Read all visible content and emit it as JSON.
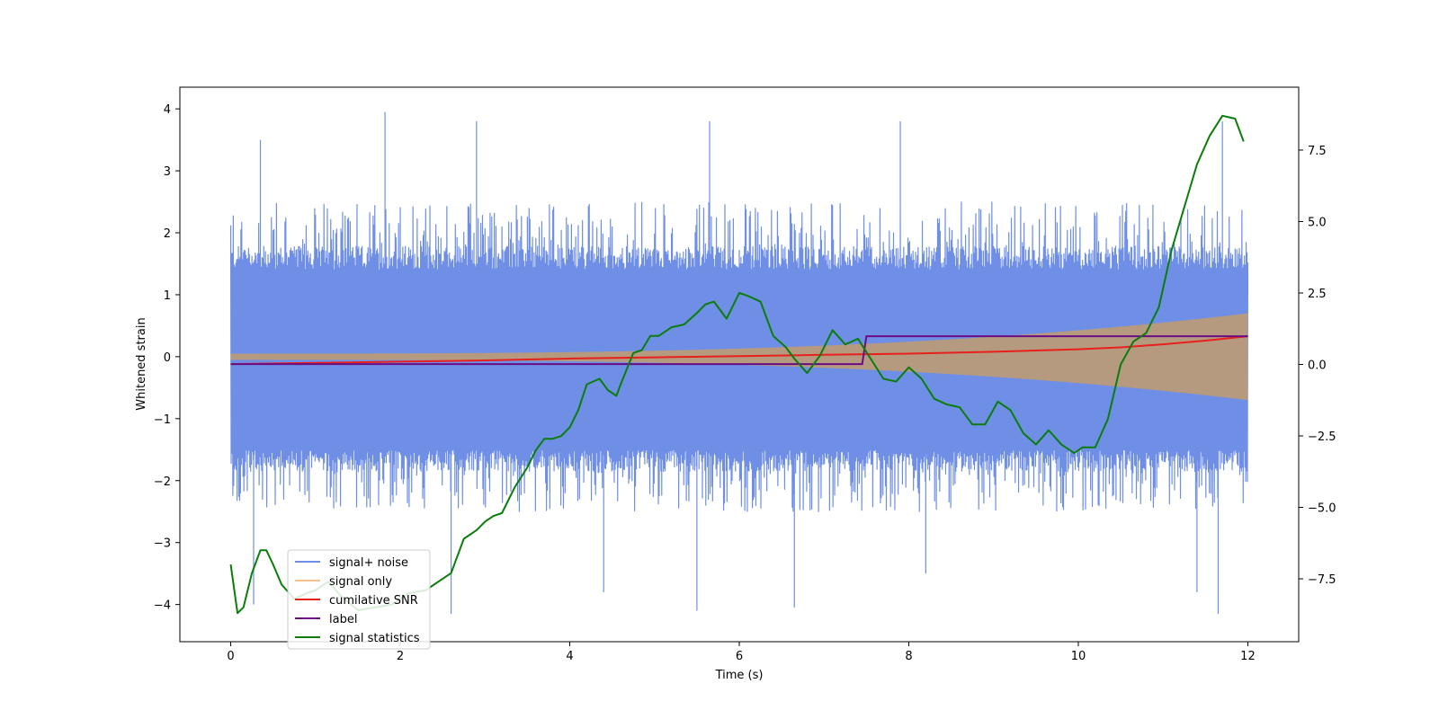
{
  "chart_data": {
    "type": "line",
    "title": "",
    "xlabel": "Time (s)",
    "ylabel": "Whitened strain",
    "y2label": "",
    "xlim": [
      -0.6,
      12.6
    ],
    "ylim": [
      -4.6,
      4.35
    ],
    "y2lim": [
      -9.7,
      9.7
    ],
    "xticks": [
      0,
      2,
      4,
      6,
      8,
      10,
      12
    ],
    "xtick_labels": [
      "0",
      "2",
      "4",
      "6",
      "8",
      "10",
      "12"
    ],
    "yticks": [
      -4,
      -3,
      -2,
      -1,
      0,
      1,
      2,
      3,
      4
    ],
    "ytick_labels": [
      "−4",
      "−3",
      "−2",
      "−1",
      "0",
      "1",
      "2",
      "3",
      "4"
    ],
    "y2ticks": [
      -7.5,
      -5.0,
      -2.5,
      0.0,
      2.5,
      5.0,
      7.5
    ],
    "y2tick_labels": [
      "−7.5",
      "−5.0",
      "−2.5",
      "0.0",
      "2.5",
      "5.0",
      "7.5"
    ],
    "legend_location": "lower-left",
    "series": [
      {
        "name": "signal+ noise",
        "color": "#6f8fe6",
        "axis": "left",
        "kind": "noise-band",
        "x_range": [
          0,
          12
        ],
        "band_low": -1.5,
        "band_high": 1.4,
        "envelope_high": 2.5,
        "envelope_low": -2.5,
        "spikes": [
          [
            0.27,
            -4.0
          ],
          [
            0.35,
            3.5
          ],
          [
            1.82,
            3.95
          ],
          [
            2.9,
            3.8
          ],
          [
            2.6,
            -4.15
          ],
          [
            4.4,
            -3.8
          ],
          [
            5.5,
            -4.1
          ],
          [
            5.65,
            3.8
          ],
          [
            6.65,
            -4.05
          ],
          [
            7.9,
            3.8
          ],
          [
            8.2,
            -3.5
          ],
          [
            11.4,
            -3.8
          ],
          [
            11.65,
            -4.15
          ],
          [
            11.7,
            3.8
          ]
        ]
      },
      {
        "name": "signal only",
        "color": "#f5c08c",
        "axis": "left",
        "kind": "chirp",
        "x_range": [
          0,
          12
        ],
        "amplitude_start": 0.05,
        "amplitude_end": 0.7
      },
      {
        "name": "cumilative SNR",
        "color": "#e8201c",
        "axis": "left",
        "x": [
          0,
          1,
          2,
          3,
          4,
          5,
          6,
          7,
          8,
          9,
          10,
          10.5,
          11,
          11.5,
          12
        ],
        "y": [
          -0.12,
          -0.1,
          -0.08,
          -0.06,
          -0.03,
          -0.01,
          0.01,
          0.03,
          0.05,
          0.08,
          0.12,
          0.15,
          0.2,
          0.26,
          0.33
        ]
      },
      {
        "name": "label",
        "color": "#6a0d83",
        "axis": "left",
        "x": [
          0,
          7.45,
          7.5,
          12
        ],
        "y": [
          -0.12,
          -0.12,
          0.33,
          0.33
        ]
      },
      {
        "name": "signal statistics",
        "color": "#0a7d0a",
        "axis": "right",
        "x": [
          0,
          0.08,
          0.15,
          0.25,
          0.35,
          0.42,
          0.5,
          0.6,
          0.75,
          0.9,
          1.0,
          1.15,
          1.3,
          1.5,
          1.7,
          1.9,
          2.1,
          2.3,
          2.45,
          2.6,
          2.75,
          2.9,
          3.0,
          3.1,
          3.2,
          3.35,
          3.5,
          3.6,
          3.7,
          3.8,
          3.9,
          4.0,
          4.1,
          4.2,
          4.35,
          4.45,
          4.55,
          4.6,
          4.75,
          4.85,
          4.95,
          5.05,
          5.2,
          5.35,
          5.5,
          5.6,
          5.7,
          5.85,
          6.0,
          6.1,
          6.25,
          6.4,
          6.55,
          6.65,
          6.8,
          6.95,
          7.1,
          7.25,
          7.4,
          7.55,
          7.7,
          7.85,
          8.0,
          8.15,
          8.3,
          8.45,
          8.6,
          8.75,
          8.9,
          9.05,
          9.2,
          9.35,
          9.5,
          9.65,
          9.8,
          9.95,
          10.05,
          10.2,
          10.35,
          10.5,
          10.65,
          10.8,
          10.95,
          11.1,
          11.25,
          11.4,
          11.55,
          11.7,
          11.85,
          11.95
        ],
        "y": [
          -7.0,
          -8.7,
          -8.5,
          -7.3,
          -6.5,
          -6.5,
          -7.0,
          -7.7,
          -8.2,
          -8.0,
          -7.9,
          -7.6,
          -8.1,
          -8.6,
          -8.5,
          -8.4,
          -8.0,
          -7.9,
          -7.6,
          -7.3,
          -6.1,
          -5.8,
          -5.5,
          -5.3,
          -5.2,
          -4.3,
          -3.6,
          -3.0,
          -2.6,
          -2.6,
          -2.5,
          -2.2,
          -1.6,
          -0.7,
          -0.5,
          -0.9,
          -1.1,
          -0.7,
          0.4,
          0.5,
          1.0,
          1.0,
          1.3,
          1.4,
          1.8,
          2.1,
          2.2,
          1.6,
          2.5,
          2.4,
          2.2,
          1.0,
          0.6,
          0.2,
          -0.3,
          0.3,
          1.2,
          0.7,
          0.9,
          0.2,
          -0.5,
          -0.6,
          -0.1,
          -0.5,
          -1.2,
          -1.4,
          -1.5,
          -2.1,
          -2.1,
          -1.3,
          -1.6,
          -2.4,
          -2.8,
          -2.3,
          -2.8,
          -3.1,
          -2.9,
          -2.9,
          -1.9,
          0.0,
          0.8,
          1.1,
          2.0,
          4.0,
          5.5,
          7.0,
          8.0,
          8.7,
          8.6,
          7.8
        ]
      }
    ]
  }
}
